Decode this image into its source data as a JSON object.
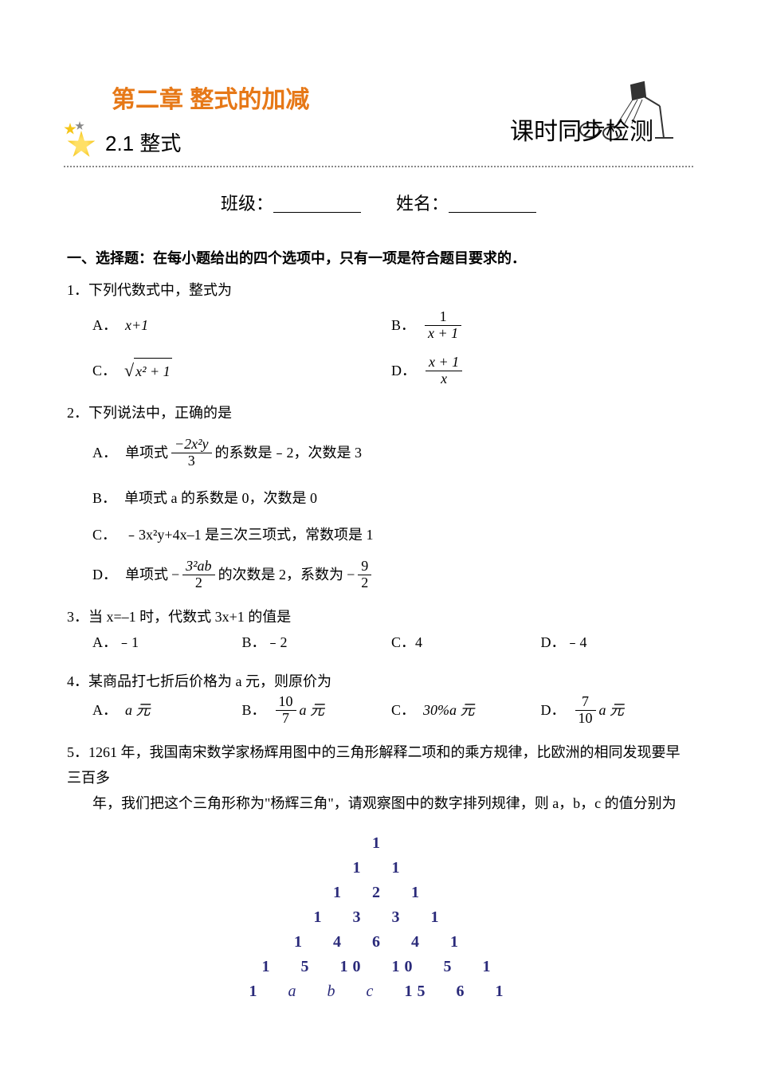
{
  "header": {
    "chapter_title": "第二章 整式的加减",
    "section_title": "2.1  整式",
    "right_title": "课时同步检测",
    "class_label": "班级：",
    "name_label": "姓名："
  },
  "section1_heading": "一、选择题：在每小题给出的四个选项中，只有一项是符合题目要求的．",
  "q1": {
    "text": "1．下列代数式中，整式为",
    "optA_label": "A．",
    "optA_body": "x+1",
    "optB_label": "B．",
    "optB_num": "1",
    "optB_den": "x + 1",
    "optC_label": "C．",
    "optC_radicand": "x² + 1",
    "optD_label": "D．",
    "optD_num": "x + 1",
    "optD_den": "x"
  },
  "q2": {
    "text": "2．下列说法中，正确的是",
    "A_label": "A．",
    "A_pre": "单项式",
    "A_frac_num": "−2x²y",
    "A_frac_den": "3",
    "A_post": "的系数是﹣2，次数是 3",
    "B_label": "B．",
    "B_text": "单项式 a 的系数是 0，次数是 0",
    "C_label": "C．",
    "C_text": "﹣3x²y+4x–1 是三次三项式，常数项是 1",
    "D_label": "D．",
    "D_pre": "单项式",
    "D_frac1_num": "3²ab",
    "D_frac1_den": "2",
    "D_mid": "的次数是 2，系数为",
    "D_frac2_num": "9",
    "D_frac2_den": "2"
  },
  "q3": {
    "text": "3．当 x=–1 时，代数式 3x+1 的值是",
    "A": "A．﹣1",
    "B": "B．﹣2",
    "C": "C．4",
    "D": "D．﹣4"
  },
  "q4": {
    "text": "4．某商品打七折后价格为 a 元，则原价为",
    "A_label": "A．",
    "A_body": "a 元",
    "B_label": "B．",
    "B_num": "10",
    "B_den": "7",
    "B_suffix": "a 元",
    "C_label": "C．",
    "C_body": "30%a 元",
    "D_label": "D．",
    "D_num": "7",
    "D_den": "10",
    "D_suffix": "a 元"
  },
  "q5": {
    "text": "5．1261 年，我国南宋数学家杨辉用图中的三角形解释二项和的乘方规律，比欧洲的相同发现要早三百多",
    "text2": "年，我们把这个三角形称为\"杨辉三角\"，请观察图中的数字排列规律，则 a，b，c 的值分别为"
  },
  "pascals_triangle": {
    "rows": [
      [
        "1"
      ],
      [
        "1",
        "1"
      ],
      [
        "1",
        "2",
        "1"
      ],
      [
        "1",
        "3",
        "3",
        "1"
      ],
      [
        "1",
        "4",
        "6",
        "4",
        "1"
      ],
      [
        "1",
        "5",
        "10",
        "10",
        "5",
        "1"
      ],
      [
        "1",
        "a",
        "b",
        "c",
        "15",
        "6",
        "1"
      ]
    ],
    "color": "#2a2a7a",
    "font_weight": "bold",
    "fontsize": 20
  },
  "lamp_svg": {
    "stroke": "#333333"
  }
}
